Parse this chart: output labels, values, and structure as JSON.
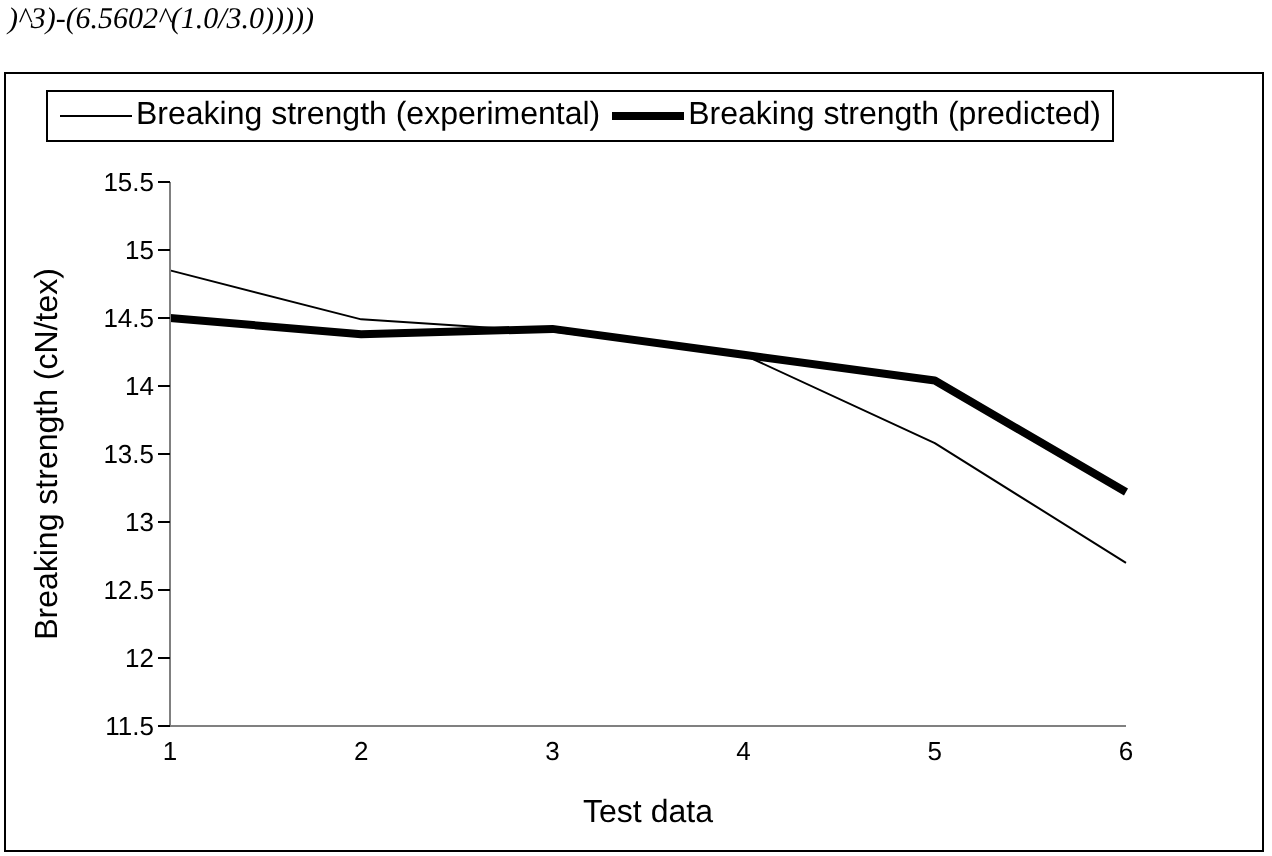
{
  "chart_data": {
    "type": "line",
    "xlabel": "Test data",
    "ylabel": "Breaking strength (cN/tex)",
    "annotations": [
      ")^3)-(6.5602^(1.0/3.0)))))"
    ],
    "categories": [
      "1",
      "2",
      "3",
      "4",
      "5",
      "6"
    ],
    "series": [
      {
        "name": "Breaking strength (experimental)",
        "color": "#000000",
        "values": [
          14.85,
          14.49,
          14.4,
          14.23,
          13.58,
          12.7
        ]
      },
      {
        "name": "Breaking strength (predicted)",
        "color": "#000000",
        "values": [
          14.5,
          14.38,
          14.42,
          14.23,
          14.04,
          13.22
        ]
      }
    ],
    "ylim": [
      11.5,
      15.5
    ],
    "yticks": [
      11.5,
      12,
      12.5,
      13,
      13.5,
      14,
      14.5,
      15,
      15.5
    ],
    "grid": false,
    "legend": "top",
    "marker": "none",
    "line_style": "solid"
  }
}
